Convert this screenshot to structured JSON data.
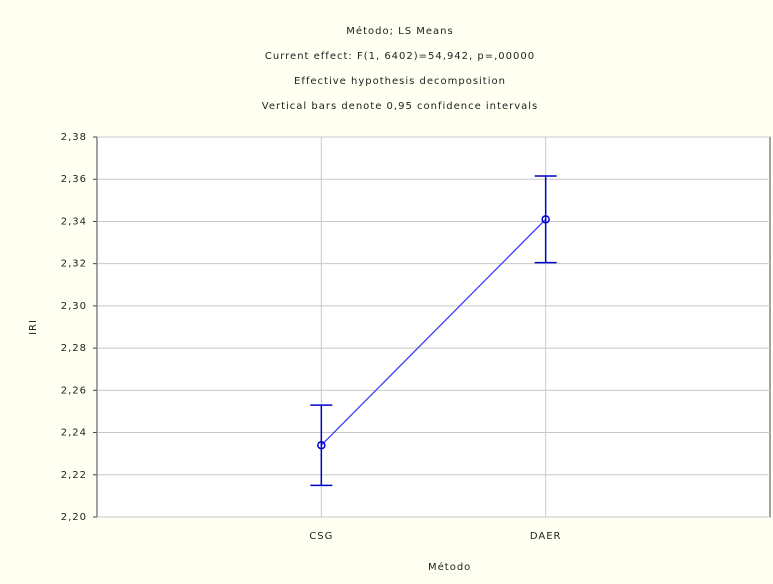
{
  "chart_data": {
    "type": "line",
    "title": [
      "Método; LS Means",
      "Current effect: F(1, 6402)=54,942, p=,00000",
      "Effective hypothesis decomposition",
      "Vertical bars denote 0,95 confidence intervals"
    ],
    "xlabel": "Método",
    "ylabel": "IRI",
    "categories": [
      "CSG",
      "DAER"
    ],
    "values": [
      2.234,
      2.341
    ],
    "errors": [
      0.019,
      0.0205
    ],
    "color": "#3a3aff",
    "error_color": "#0000cc",
    "ylim": [
      2.2,
      2.38
    ],
    "yticks": [
      {
        "value": 2.2,
        "label": "2,20"
      },
      {
        "value": 2.22,
        "label": "2,22"
      },
      {
        "value": 2.24,
        "label": "2,24"
      },
      {
        "value": 2.26,
        "label": "2,26"
      },
      {
        "value": 2.28,
        "label": "2,28"
      },
      {
        "value": 2.3,
        "label": "2,30"
      },
      {
        "value": 2.32,
        "label": "2,32"
      },
      {
        "value": 2.34,
        "label": "2,34"
      },
      {
        "value": 2.36,
        "label": "2,36"
      },
      {
        "value": 2.38,
        "label": "2,38"
      }
    ],
    "grid": true
  }
}
